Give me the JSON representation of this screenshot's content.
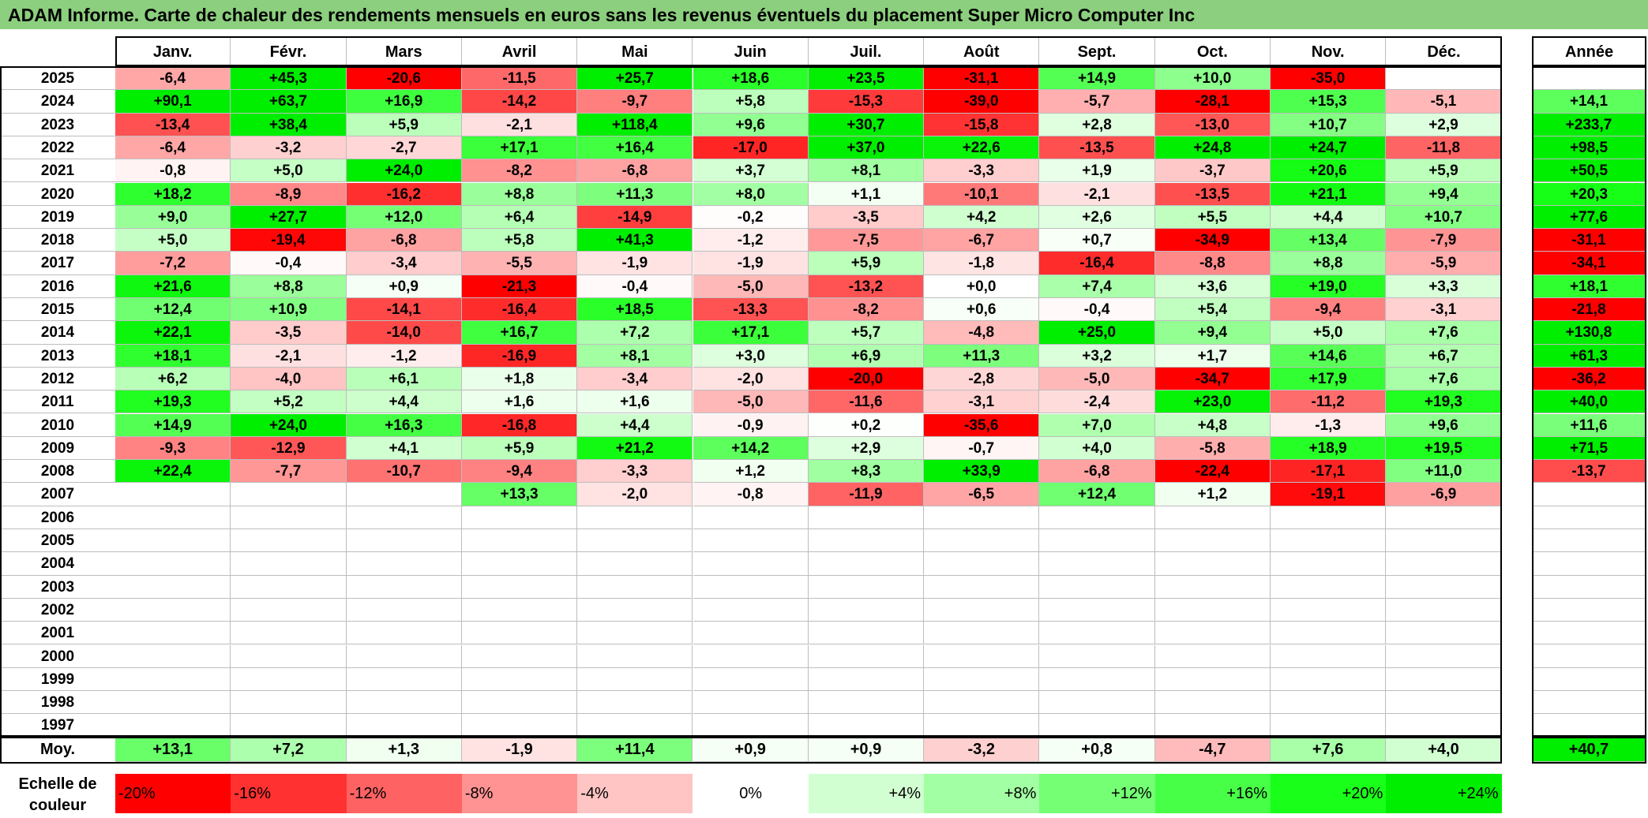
{
  "title": "ADAM Informe. Carte de chaleur des rendements mensuels en euros sans les revenus éventuels du placement Super Micro Computer Inc",
  "chart_data": {
    "type": "heatmap",
    "months": [
      "Janv.",
      "Févr.",
      "Mars",
      "Avril",
      "Mai",
      "Juin",
      "Juil.",
      "Août",
      "Sept.",
      "Oct.",
      "Nov.",
      "Déc."
    ],
    "year_column_label": "Année",
    "rows": [
      {
        "year": "2025",
        "months": [
          "-6,4",
          "+45,3",
          "-20,6",
          "-11,5",
          "+25,7",
          "+18,6",
          "+23,5",
          "-31,1",
          "+14,9",
          "+10,0",
          "-35,0",
          ""
        ],
        "annual": ""
      },
      {
        "year": "2024",
        "months": [
          "+90,1",
          "+63,7",
          "+16,9",
          "-14,2",
          "-9,7",
          "+5,8",
          "-15,3",
          "-39,0",
          "-5,7",
          "-28,1",
          "+15,3",
          "-5,1"
        ],
        "annual": "+14,1"
      },
      {
        "year": "2023",
        "months": [
          "-13,4",
          "+38,4",
          "+5,9",
          "-2,1",
          "+118,4",
          "+9,6",
          "+30,7",
          "-15,8",
          "+2,8",
          "-13,0",
          "+10,7",
          "+2,9"
        ],
        "annual": "+233,7"
      },
      {
        "year": "2022",
        "months": [
          "-6,4",
          "-3,2",
          "-2,7",
          "+17,1",
          "+16,4",
          "-17,0",
          "+37,0",
          "+22,6",
          "-13,5",
          "+24,8",
          "+24,7",
          "-11,8"
        ],
        "annual": "+98,5"
      },
      {
        "year": "2021",
        "months": [
          "-0,8",
          "+5,0",
          "+24,0",
          "-8,2",
          "-6,8",
          "+3,7",
          "+8,1",
          "-3,3",
          "+1,9",
          "-3,7",
          "+20,6",
          "+5,9"
        ],
        "annual": "+50,5"
      },
      {
        "year": "2020",
        "months": [
          "+18,2",
          "-8,9",
          "-16,2",
          "+8,8",
          "+11,3",
          "+8,0",
          "+1,1",
          "-10,1",
          "-2,1",
          "-13,5",
          "+21,1",
          "+9,4"
        ],
        "annual": "+20,3"
      },
      {
        "year": "2019",
        "months": [
          "+9,0",
          "+27,7",
          "+12,0",
          "+6,4",
          "-14,9",
          "-0,2",
          "-3,5",
          "+4,2",
          "+2,6",
          "+5,5",
          "+4,4",
          "+10,7"
        ],
        "annual": "+77,6"
      },
      {
        "year": "2018",
        "months": [
          "+5,0",
          "-19,4",
          "-6,8",
          "+5,8",
          "+41,3",
          "-1,2",
          "-7,5",
          "-6,7",
          "+0,7",
          "-34,9",
          "+13,4",
          "-7,9"
        ],
        "annual": "-31,1"
      },
      {
        "year": "2017",
        "months": [
          "-7,2",
          "-0,4",
          "-3,4",
          "-5,5",
          "-1,9",
          "-1,9",
          "+5,9",
          "-1,8",
          "-16,4",
          "-8,8",
          "+8,8",
          "-5,9"
        ],
        "annual": "-34,1"
      },
      {
        "year": "2016",
        "months": [
          "+21,6",
          "+8,8",
          "+0,9",
          "-21,3",
          "-0,4",
          "-5,0",
          "-13,2",
          "+0,0",
          "+7,4",
          "+3,6",
          "+19,0",
          "+3,3"
        ],
        "annual": "+18,1"
      },
      {
        "year": "2015",
        "months": [
          "+12,4",
          "+10,9",
          "-14,1",
          "-16,4",
          "+18,5",
          "-13,3",
          "-8,2",
          "+0,6",
          "-0,4",
          "+5,4",
          "-9,4",
          "-3,1"
        ],
        "annual": "-21,8"
      },
      {
        "year": "2014",
        "months": [
          "+22,1",
          "-3,5",
          "-14,0",
          "+16,7",
          "+7,2",
          "+17,1",
          "+5,7",
          "-4,8",
          "+25,0",
          "+9,4",
          "+5,0",
          "+7,6"
        ],
        "annual": "+130,8"
      },
      {
        "year": "2013",
        "months": [
          "+18,1",
          "-2,1",
          "-1,2",
          "-16,9",
          "+8,1",
          "+3,0",
          "+6,9",
          "+11,3",
          "+3,2",
          "+1,7",
          "+14,6",
          "+6,7"
        ],
        "annual": "+61,3"
      },
      {
        "year": "2012",
        "months": [
          "+6,2",
          "-4,0",
          "+6,1",
          "+1,8",
          "-3,4",
          "-2,0",
          "-20,0",
          "-2,8",
          "-5,0",
          "-34,7",
          "+17,9",
          "+7,6"
        ],
        "annual": "-36,2"
      },
      {
        "year": "2011",
        "months": [
          "+19,3",
          "+5,2",
          "+4,4",
          "+1,6",
          "+1,6",
          "-5,0",
          "-11,6",
          "-3,1",
          "-2,4",
          "+23,0",
          "-11,2",
          "+19,3"
        ],
        "annual": "+40,0"
      },
      {
        "year": "2010",
        "months": [
          "+14,9",
          "+24,0",
          "+16,3",
          "-16,8",
          "+4,4",
          "-0,9",
          "+0,2",
          "-35,6",
          "+7,0",
          "+4,8",
          "-1,3",
          "+9,6"
        ],
        "annual": "+11,6"
      },
      {
        "year": "2009",
        "months": [
          "-9,3",
          "-12,9",
          "+4,1",
          "+5,9",
          "+21,2",
          "+14,2",
          "+2,9",
          "-0,7",
          "+4,0",
          "-5,8",
          "+18,9",
          "+19,5"
        ],
        "annual": "+71,5"
      },
      {
        "year": "2008",
        "months": [
          "+22,4",
          "-7,7",
          "-10,7",
          "-9,4",
          "-3,3",
          "+1,2",
          "+8,3",
          "+33,9",
          "-6,8",
          "-22,4",
          "-17,1",
          "+11,0"
        ],
        "annual": "-13,7"
      },
      {
        "year": "2007",
        "months": [
          "",
          "",
          "",
          "+13,3",
          "-2,0",
          "-0,8",
          "-11,9",
          "-6,5",
          "+12,4",
          "+1,2",
          "-19,1",
          "-6,9"
        ],
        "annual": ""
      },
      {
        "year": "2006",
        "months": [
          "",
          "",
          "",
          "",
          "",
          "",
          "",
          "",
          "",
          "",
          "",
          ""
        ],
        "annual": ""
      },
      {
        "year": "2005",
        "months": [
          "",
          "",
          "",
          "",
          "",
          "",
          "",
          "",
          "",
          "",
          "",
          ""
        ],
        "annual": ""
      },
      {
        "year": "2004",
        "months": [
          "",
          "",
          "",
          "",
          "",
          "",
          "",
          "",
          "",
          "",
          "",
          ""
        ],
        "annual": ""
      },
      {
        "year": "2003",
        "months": [
          "",
          "",
          "",
          "",
          "",
          "",
          "",
          "",
          "",
          "",
          "",
          ""
        ],
        "annual": ""
      },
      {
        "year": "2002",
        "months": [
          "",
          "",
          "",
          "",
          "",
          "",
          "",
          "",
          "",
          "",
          "",
          ""
        ],
        "annual": ""
      },
      {
        "year": "2001",
        "months": [
          "",
          "",
          "",
          "",
          "",
          "",
          "",
          "",
          "",
          "",
          "",
          ""
        ],
        "annual": ""
      },
      {
        "year": "2000",
        "months": [
          "",
          "",
          "",
          "",
          "",
          "",
          "",
          "",
          "",
          "",
          "",
          ""
        ],
        "annual": ""
      },
      {
        "year": "1999",
        "months": [
          "",
          "",
          "",
          "",
          "",
          "",
          "",
          "",
          "",
          "",
          "",
          ""
        ],
        "annual": ""
      },
      {
        "year": "1998",
        "months": [
          "",
          "",
          "",
          "",
          "",
          "",
          "",
          "",
          "",
          "",
          "",
          ""
        ],
        "annual": ""
      },
      {
        "year": "1997",
        "months": [
          "",
          "",
          "",
          "",
          "",
          "",
          "",
          "",
          "",
          "",
          "",
          ""
        ],
        "annual": ""
      }
    ],
    "average": {
      "label": "Moy.",
      "months": [
        "+13,1",
        "+7,2",
        "+1,3",
        "-1,9",
        "+11,4",
        "+0,9",
        "+0,9",
        "-3,2",
        "+0,8",
        "-4,7",
        "+7,6",
        "+4,0"
      ],
      "annual": "+40,7"
    },
    "color_scale": {
      "label": "Echelle de couleur",
      "steps": [
        {
          "label": "-20%",
          "value": -20,
          "color": "#ff0000"
        },
        {
          "label": "-16%",
          "value": -16,
          "color": "#ff3131"
        },
        {
          "label": "-12%",
          "value": -12,
          "color": "#ff6262"
        },
        {
          "label": "-8%",
          "value": -8,
          "color": "#ff9393"
        },
        {
          "label": "-4%",
          "value": -4,
          "color": "#ffc4c4"
        },
        {
          "label": "0%",
          "value": 0,
          "color": "#ffffff"
        },
        {
          "label": "+4%",
          "value": 4,
          "color": "#d1ffd1"
        },
        {
          "label": "+8%",
          "value": 8,
          "color": "#a3ffa3"
        },
        {
          "label": "+12%",
          "value": 12,
          "color": "#75ff75"
        },
        {
          "label": "+16%",
          "value": 16,
          "color": "#47ff47"
        },
        {
          "label": "+20%",
          "value": 20,
          "color": "#19ff19"
        },
        {
          "label": "+24%",
          "value": 24,
          "color": "#00ee00"
        }
      ]
    }
  }
}
